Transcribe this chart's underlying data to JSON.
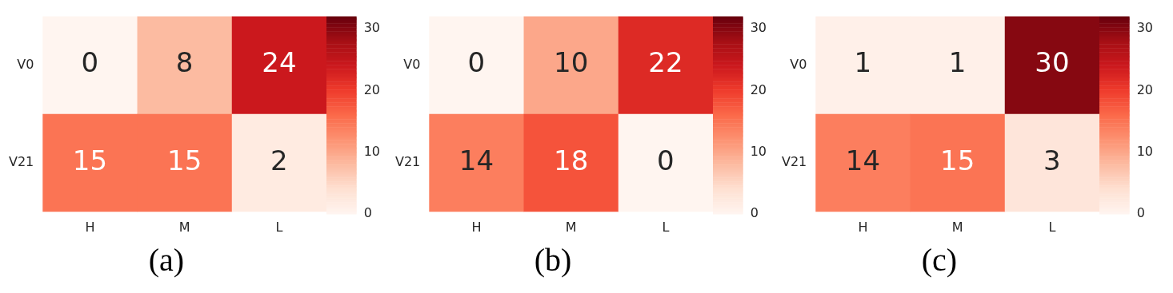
{
  "chart_data": [
    {
      "type": "heatmap",
      "title": "(a)",
      "categories": [
        "H",
        "M",
        "L"
      ],
      "y_categories": [
        "V0",
        "V21"
      ],
      "cells": [
        [
          0,
          8,
          24
        ],
        [
          15,
          15,
          2
        ]
      ],
      "clim": [
        0,
        32
      ],
      "cticks": [
        0,
        10,
        20,
        30
      ],
      "data_labels": true
    },
    {
      "type": "heatmap",
      "title": "(b)",
      "categories": [
        "H",
        "M",
        "L"
      ],
      "y_categories": [
        "V0",
        "V21"
      ],
      "cells": [
        [
          0,
          10,
          22
        ],
        [
          14,
          18,
          0
        ]
      ],
      "clim": [
        0,
        32
      ],
      "cticks": [
        0,
        10,
        20,
        30
      ],
      "data_labels": true
    },
    {
      "type": "heatmap",
      "title": "(c)",
      "categories": [
        "H",
        "M",
        "L"
      ],
      "y_categories": [
        "V0",
        "V21"
      ],
      "cells": [
        [
          1,
          1,
          30
        ],
        [
          14,
          15,
          3
        ]
      ],
      "clim": [
        0,
        32
      ],
      "cticks": [
        0,
        10,
        20,
        30
      ],
      "data_labels": true
    }
  ]
}
